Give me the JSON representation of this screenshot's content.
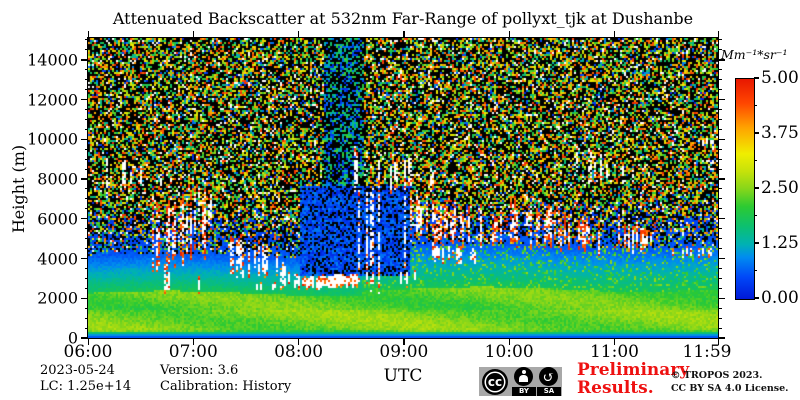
{
  "title": "Attenuated Backscatter at 532nm Far-Range of pollyxt_tjk at Dushanbe",
  "footer": {
    "date": "2023-05-24",
    "lc": "LC: 1.25e+14",
    "version": "Version: 3.6",
    "calibration": "Calibration: History",
    "preliminary_line1": "Preliminary",
    "preliminary_line2": "Results.",
    "copyright_line1": "© TROPOS 2023.",
    "copyright_line2": "CC BY SA 4.0 License.",
    "badge": {
      "cc": "cc",
      "by": "BY",
      "sa": "SA",
      "sa_arrow": "↺"
    }
  },
  "colors": {
    "preliminary_red": "#ee1111",
    "axis": "#000000",
    "badge_gray": "#a8a8a8"
  },
  "chart_data": {
    "type": "heatmap",
    "title": "Attenuated Backscatter at 532nm Far-Range of pollyxt_tjk at Dushanbe",
    "xlabel": "UTC",
    "ylabel": "Height (m)",
    "x_range_hours": [
      0,
      5.9833
    ],
    "y_range_m": [
      0,
      15100
    ],
    "grid": false,
    "x_ticks": [
      {
        "label": "06:00",
        "hour": 0
      },
      {
        "label": "07:00",
        "hour": 1
      },
      {
        "label": "08:00",
        "hour": 2
      },
      {
        "label": "09:00",
        "hour": 3
      },
      {
        "label": "10:00",
        "hour": 4
      },
      {
        "label": "11:00",
        "hour": 5
      },
      {
        "label": "11:59",
        "hour": 5.9833,
        "center_offset": -11
      }
    ],
    "y_ticks": [
      {
        "label": "0",
        "m": 0
      },
      {
        "label": "2000",
        "m": 2000
      },
      {
        "label": "4000",
        "m": 4000
      },
      {
        "label": "6000",
        "m": 6000
      },
      {
        "label": "8000",
        "m": 8000
      },
      {
        "label": "10000",
        "m": 10000
      },
      {
        "label": "12000",
        "m": 12000
      },
      {
        "label": "14000",
        "m": 14000
      }
    ],
    "y_minor_step_m": 500,
    "colorbar": {
      "label": "Mm⁻¹*sr⁻¹",
      "vmin": 0,
      "vmax": 5,
      "ticks": [
        {
          "label": "5.00",
          "v": 5.0
        },
        {
          "label": "3.75",
          "v": 3.75
        },
        {
          "label": "2.50",
          "v": 2.5
        },
        {
          "label": "1.25",
          "v": 1.25
        },
        {
          "label": "0.00",
          "v": 0.0
        }
      ],
      "minor_step": 0.625,
      "over_color": "#ffffff",
      "under_color": "#000000",
      "stops": [
        [
          0.0,
          "#0018d8"
        ],
        [
          0.1,
          "#0048f8"
        ],
        [
          0.19,
          "#008cf0"
        ],
        [
          0.25,
          "#00b2b2"
        ],
        [
          0.33,
          "#0cc070"
        ],
        [
          0.42,
          "#2cca32"
        ],
        [
          0.5,
          "#86d61a"
        ],
        [
          0.58,
          "#c6e20a"
        ],
        [
          0.66,
          "#f0ee00"
        ],
        [
          0.78,
          "#ffa200"
        ],
        [
          0.89,
          "#ff4600"
        ],
        [
          1.0,
          "#e81700"
        ]
      ]
    },
    "seed": 7,
    "base": {
      "surface_strip_top_m": 130,
      "surface_ramp_top_m": 320,
      "bl_top_m": 2250,
      "bl_top_late_bonus_m": 200,
      "bl_change_hour": 2.6,
      "bl_value": 2.1,
      "bl_noise": 0.38,
      "trans_depth_m": 1900,
      "trans_value_top": 0.45,
      "trans_value_bottom": 1.7,
      "mixed_depth_m": 2300,
      "noise_density": 0.52,
      "noise_white_frac": 0.1,
      "noise_blue_frac": 0.1,
      "noise_v_lo": 1.25,
      "noise_v_span": 3.55
    },
    "dark_regions": [
      {
        "t": [
          2.02,
          3.05
        ],
        "h": [
          3100,
          7700
        ],
        "fill_prob": 0.72,
        "v": [
          0.12,
          0.9
        ]
      },
      {
        "t": [
          2.25,
          2.62
        ],
        "h": [
          7700,
          15100
        ],
        "fill_prob": 0.5,
        "v": [
          0.0,
          2.3
        ]
      }
    ],
    "clouds": [
      {
        "t": [
          0.12,
          0.8
        ],
        "hb": [
          7800,
          7550
        ],
        "ht": [
          8900,
          8350
        ],
        "density": 0.22,
        "fringe": 0.45,
        "hole": 0.3,
        "orange": 0.0,
        "jit": 500
      },
      {
        "t": [
          0.6,
          1.12
        ],
        "hb": [
          3650,
          4100
        ],
        "ht": [
          6600,
          7400
        ],
        "density": 0.5,
        "fringe": 0.75,
        "hole": 0.28,
        "orange": 0.35,
        "jit": 800
      },
      {
        "t": [
          1.05,
          1.4
        ],
        "hb": [
          5600,
          5200
        ],
        "ht": [
          7300,
          6500
        ],
        "density": 0.3,
        "fringe": 0.55,
        "hole": 0.3,
        "orange": 0.0,
        "jit": 600
      },
      {
        "t": [
          1.3,
          1.8
        ],
        "hb": [
          3300,
          3100
        ],
        "ht": [
          5200,
          4300
        ],
        "density": 0.32,
        "fringe": 0.55,
        "hole": 0.3,
        "orange": 0.1,
        "jit": 600
      },
      {
        "t": [
          1.78,
          2.02
        ],
        "hb": [
          2600,
          2540
        ],
        "ht": [
          3900,
          3100
        ],
        "density": 0.4,
        "fringe": 0.5,
        "hole": 0.2,
        "orange": 0.0,
        "jit": 400
      },
      {
        "t": [
          2.0,
          2.56
        ],
        "hb": [
          2520,
          2600
        ],
        "ht": [
          3080,
          3160
        ],
        "density": 0.96,
        "fringe": 0.35,
        "hole": 0.04,
        "orange": 0.22,
        "jit": 200
      },
      {
        "t": [
          2.56,
          3.02
        ],
        "hb": [
          2620,
          2720
        ],
        "ht": [
          7600,
          8000
        ],
        "density": 0.34,
        "fringe": 0.4,
        "hole": 0.32,
        "orange": 0.12,
        "jit": 900
      },
      {
        "t": [
          2.5,
          3.35
        ],
        "hb": [
          7600,
          7350
        ],
        "ht": [
          9400,
          8600
        ],
        "density": 0.3,
        "fringe": 0.5,
        "hole": 0.3,
        "orange": 0.0,
        "jit": 600
      },
      {
        "t": [
          3.0,
          3.95
        ],
        "hb": [
          5400,
          4400
        ],
        "ht": [
          7000,
          6300
        ],
        "density": 0.5,
        "fringe": 0.75,
        "hole": 0.26,
        "orange": 0.3,
        "jit": 700
      },
      {
        "t": [
          3.25,
          3.7
        ],
        "hb": [
          3900,
          3780
        ],
        "ht": [
          4700,
          4420
        ],
        "density": 0.55,
        "fringe": 0.5,
        "hole": 0.15,
        "orange": 0.15,
        "jit": 300
      },
      {
        "t": [
          4.0,
          4.92
        ],
        "hb": [
          4900,
          4380
        ],
        "ht": [
          7100,
          5600
        ],
        "density": 0.55,
        "fringe": 0.75,
        "hole": 0.26,
        "orange": 0.35,
        "jit": 700
      },
      {
        "t": [
          4.55,
          5.2
        ],
        "hb": [
          8200,
          7650
        ],
        "ht": [
          9700,
          8550
        ],
        "density": 0.28,
        "fringe": 0.4,
        "hole": 0.35,
        "orange": 0.0,
        "jit": 500
      },
      {
        "t": [
          5.03,
          5.35
        ],
        "hb": [
          4500,
          4400
        ],
        "ht": [
          6200,
          5400
        ],
        "density": 0.5,
        "fringe": 0.75,
        "hole": 0.22,
        "orange": 0.4,
        "jit": 500
      },
      {
        "t": [
          5.55,
          5.98
        ],
        "hb": [
          4080,
          4150
        ],
        "ht": [
          4620,
          4560
        ],
        "density": 0.5,
        "fringe": 0.55,
        "hole": 0.2,
        "orange": 0.3,
        "jit": 250
      },
      {
        "t": [
          5.78,
          5.95
        ],
        "hb": [
          9700,
          9750
        ],
        "ht": [
          9990,
          9960
        ],
        "density": 0.55,
        "fringe": 0.2,
        "hole": 0.1,
        "orange": 0.0,
        "jit": 120
      },
      {
        "t": [
          0.72,
          1.22
        ],
        "hb": [
          2300,
          2320
        ],
        "ht": [
          3500,
          2900
        ],
        "density": 0.2,
        "fringe": 0.3,
        "hole": 0.22,
        "orange": 0.1,
        "jit": 500
      },
      {
        "t": [
          1.55,
          1.78
        ],
        "hb": [
          2440,
          2450
        ],
        "ht": [
          2850,
          2760
        ],
        "density": 0.3,
        "fringe": 0.3,
        "hole": 0.15,
        "orange": 0.0,
        "jit": 200
      },
      {
        "t": [
          2.95,
          3.25
        ],
        "hb": [
          2620,
          2680
        ],
        "ht": [
          3350,
          3250
        ],
        "density": 0.25,
        "fringe": 0.4,
        "hole": 0.2,
        "orange": 0.0,
        "jit": 300
      }
    ]
  }
}
